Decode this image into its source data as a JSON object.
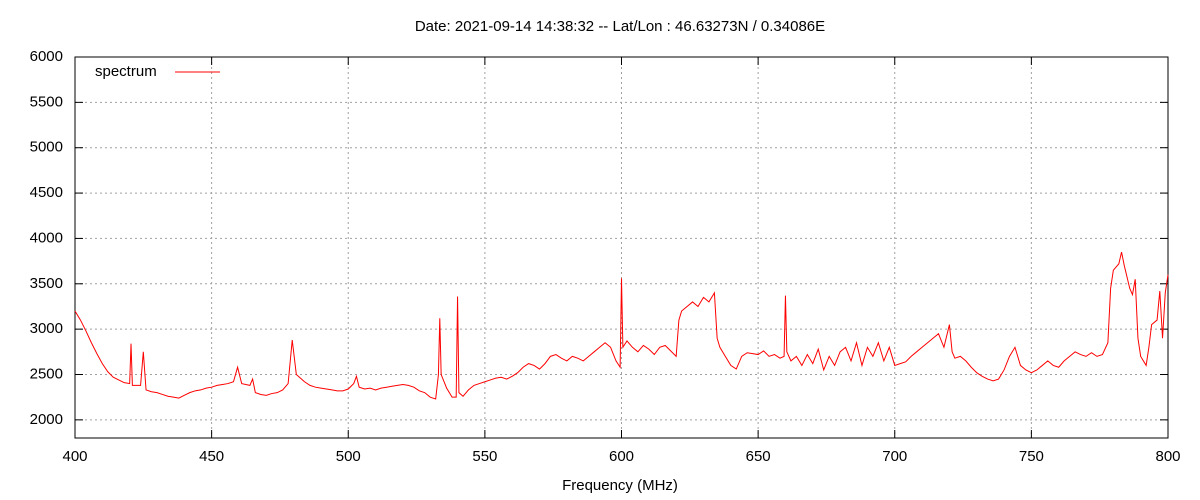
{
  "chart_data": {
    "type": "line",
    "title": "Date: 2021-09-14 14:38:32  --  Lat/Lon : 46.63273N / 0.34086E",
    "xlabel": "Frequency (MHz)",
    "xlim": [
      400,
      800
    ],
    "xticks": [
      400,
      450,
      500,
      550,
      600,
      650,
      700,
      750,
      800
    ],
    "ylim": [
      1800,
      6000
    ],
    "yticks": [
      2000,
      2500,
      3000,
      3500,
      4000,
      4500,
      5000,
      5500,
      6000
    ],
    "grid": true,
    "legend": "top-left",
    "x": [
      400,
      402,
      404,
      406,
      408,
      410,
      412,
      414,
      416,
      418,
      420,
      420.5,
      421,
      424,
      425,
      426,
      428,
      430,
      432,
      434,
      436,
      438,
      440,
      442,
      444,
      446,
      448,
      450,
      452,
      454,
      456,
      458,
      459.5,
      461,
      464,
      465,
      466,
      468,
      470,
      472,
      474,
      476,
      478,
      479.5,
      481,
      484,
      486,
      488,
      490,
      492,
      494,
      496,
      498,
      500,
      502,
      503,
      504,
      506,
      508,
      510,
      512,
      514,
      516,
      518,
      520,
      522,
      524,
      526,
      528,
      530,
      532,
      533,
      533.5,
      534,
      536,
      538,
      539.5,
      540,
      540.5,
      542,
      544,
      546,
      548,
      550,
      552,
      554,
      556,
      558,
      560,
      562,
      564,
      566,
      568,
      570,
      572,
      574,
      576,
      578,
      580,
      582,
      584,
      586,
      588,
      590,
      592,
      594,
      596,
      598,
      599.5,
      600,
      600.5,
      602,
      604,
      606,
      608,
      610,
      612,
      614,
      616,
      618,
      620,
      621,
      622,
      624,
      626,
      628,
      630,
      632,
      634,
      635,
      636,
      638,
      640,
      642,
      644,
      646,
      648,
      650,
      652,
      654,
      656,
      658,
      659.5,
      660,
      660.5,
      662,
      664,
      666,
      668,
      670,
      672,
      674,
      676,
      678,
      680,
      682,
      684,
      686,
      688,
      690,
      692,
      694,
      696,
      698,
      700,
      702,
      704,
      706,
      708,
      710,
      712,
      714,
      716,
      718,
      720,
      721,
      722,
      724,
      726,
      728,
      730,
      732,
      734,
      736,
      738,
      740,
      742,
      744,
      746,
      748,
      750,
      752,
      754,
      756,
      758,
      760,
      762,
      764,
      766,
      768,
      770,
      772,
      774,
      776,
      778,
      779,
      780,
      782,
      783,
      784,
      786,
      787,
      788,
      789,
      790,
      792,
      793,
      794,
      796,
      797,
      798,
      799,
      800
    ],
    "series": [
      {
        "name": "spectrum",
        "color": "#ff0000",
        "values": [
          3200,
          3100,
          2980,
          2850,
          2730,
          2620,
          2530,
          2470,
          2440,
          2410,
          2400,
          2840,
          2380,
          2380,
          2750,
          2330,
          2310,
          2300,
          2280,
          2260,
          2250,
          2240,
          2270,
          2300,
          2320,
          2330,
          2350,
          2360,
          2380,
          2390,
          2400,
          2420,
          2580,
          2400,
          2380,
          2450,
          2300,
          2280,
          2270,
          2290,
          2300,
          2330,
          2400,
          2880,
          2500,
          2420,
          2380,
          2360,
          2350,
          2340,
          2330,
          2320,
          2320,
          2340,
          2400,
          2480,
          2360,
          2340,
          2350,
          2330,
          2350,
          2360,
          2370,
          2380,
          2390,
          2380,
          2360,
          2320,
          2300,
          2250,
          2230,
          2500,
          3120,
          2500,
          2350,
          2250,
          2250,
          3360,
          2300,
          2260,
          2330,
          2380,
          2400,
          2420,
          2440,
          2460,
          2470,
          2450,
          2480,
          2520,
          2580,
          2620,
          2600,
          2560,
          2620,
          2700,
          2720,
          2680,
          2650,
          2700,
          2680,
          2650,
          2700,
          2750,
          2800,
          2850,
          2800,
          2650,
          2580,
          3560,
          2800,
          2870,
          2800,
          2750,
          2820,
          2780,
          2720,
          2800,
          2820,
          2760,
          2700,
          3100,
          3200,
          3250,
          3300,
          3250,
          3350,
          3300,
          3400,
          2900,
          2800,
          2700,
          2600,
          2560,
          2700,
          2740,
          2730,
          2720,
          2760,
          2700,
          2720,
          2680,
          2700,
          3370,
          2750,
          2650,
          2700,
          2600,
          2720,
          2620,
          2780,
          2550,
          2700,
          2600,
          2750,
          2800,
          2650,
          2850,
          2600,
          2800,
          2700,
          2850,
          2650,
          2800,
          2600,
          2620,
          2640,
          2700,
          2750,
          2800,
          2850,
          2900,
          2950,
          2800,
          3050,
          2750,
          2680,
          2700,
          2650,
          2580,
          2520,
          2480,
          2450,
          2430,
          2450,
          2550,
          2700,
          2800,
          2600,
          2550,
          2520,
          2550,
          2600,
          2650,
          2600,
          2580,
          2650,
          2700,
          2750,
          2720,
          2700,
          2740,
          2700,
          2720,
          2850,
          3450,
          3650,
          3720,
          3850,
          3700,
          3450,
          3380,
          3550,
          2900,
          2700,
          2600,
          2800,
          3050,
          3100,
          3420,
          2900,
          3400,
          3600
        ]
      }
    ]
  }
}
